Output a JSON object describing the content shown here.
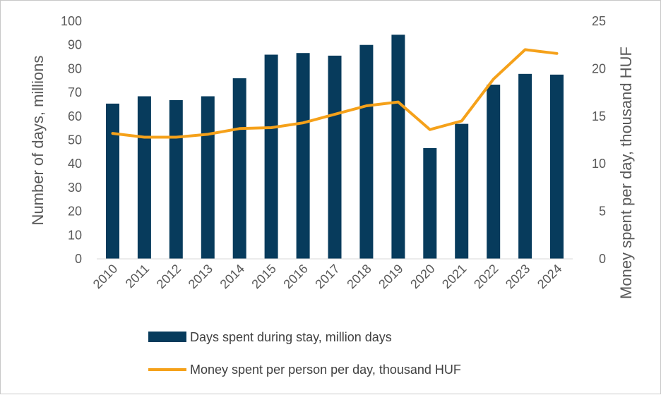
{
  "chart_data": {
    "type": "bar",
    "title": "",
    "categories": [
      "2010",
      "2011",
      "2012",
      "2013",
      "2014",
      "2015",
      "2016",
      "2017",
      "2018",
      "2019",
      "2020",
      "2021",
      "2022",
      "2023",
      "2024"
    ],
    "series": [
      {
        "name": "Days spent during stay, million days",
        "type": "bar",
        "axis": "left",
        "color": "#073b5c",
        "values": [
          65.3,
          68.4,
          66.8,
          68.4,
          76.0,
          85.9,
          86.6,
          85.5,
          90.0,
          94.3,
          46.6,
          56.8,
          73.3,
          77.8,
          77.5
        ]
      },
      {
        "name": "Money spent per person per day, thousand HUF",
        "type": "line",
        "axis": "right",
        "color": "#f5a11a",
        "values": [
          13.2,
          12.8,
          12.8,
          13.1,
          13.7,
          13.8,
          14.3,
          15.2,
          16.1,
          16.5,
          13.6,
          14.5,
          18.9,
          22.0,
          21.6
        ]
      }
    ],
    "ylabel": "Number of days, millions",
    "y2label": "Money spent per day, thousand HUF",
    "ylim": [
      0,
      100
    ],
    "y2lim": [
      0,
      25
    ],
    "yticks": [
      "0",
      "10",
      "20",
      "30",
      "40",
      "50",
      "60",
      "70",
      "80",
      "90",
      "100"
    ],
    "y2ticks": [
      "0",
      "5",
      "10",
      "15",
      "20",
      "25"
    ],
    "grid": false,
    "legend_position": "bottom"
  }
}
